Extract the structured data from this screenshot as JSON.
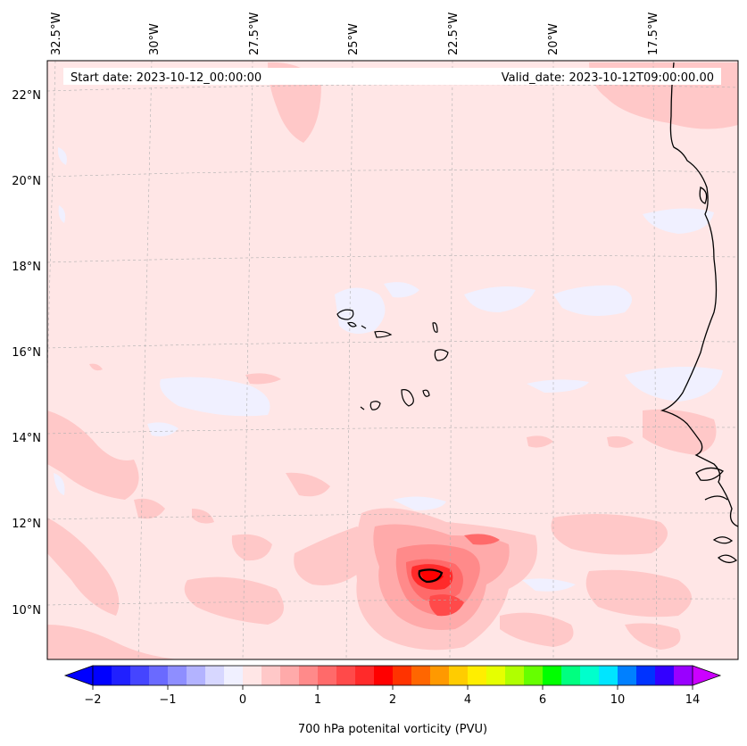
{
  "map": {
    "start_label": "Start date: 2023-10-12_00:00:00",
    "valid_label": "Valid_date: 2023-10-12T09:00:00.00",
    "lon_labels": [
      "32.5°W",
      "30°W",
      "27.5°W",
      "25°W",
      "22.5°W",
      "20°W",
      "17.5°W"
    ],
    "lat_labels": [
      "22°N",
      "20°N",
      "18°N",
      "16°N",
      "14°N",
      "12°N",
      "10°N"
    ],
    "gridlines": true
  },
  "colorbar": {
    "label": "700 hPa potenital vorticity (PVU)",
    "tick_labels": [
      "−2",
      "−1",
      "0",
      "1",
      "2",
      "4",
      "6",
      "10",
      "14"
    ],
    "colors": [
      "#0000ff",
      "#2020ff",
      "#4545ff",
      "#6a6aff",
      "#8e8eff",
      "#b3b3ff",
      "#d7d7ff",
      "#f0f0ff",
      "#ffe6e6",
      "#ffc8c8",
      "#ffaaaa",
      "#ff8a8a",
      "#ff6a6a",
      "#ff4a4a",
      "#ff2a2a",
      "#ff0000",
      "#ff3300",
      "#ff6600",
      "#ff9900",
      "#ffcc00",
      "#ffee00",
      "#e6ff00",
      "#b0ff00",
      "#66ff00",
      "#00ff00",
      "#00ff80",
      "#00ffcc",
      "#00e5ff",
      "#0080ff",
      "#0033ff",
      "#3300ff",
      "#9900ff"
    ],
    "under_color": "#0000ff",
    "over_color": "#cc00ff"
  }
}
